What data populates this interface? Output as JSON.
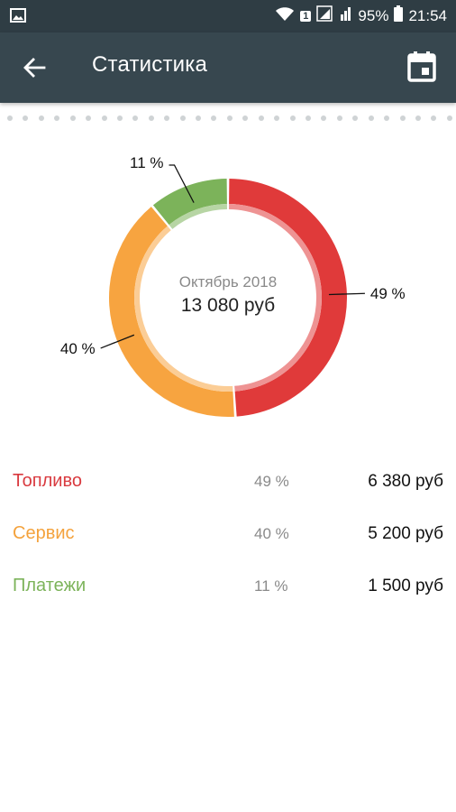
{
  "status_bar": {
    "battery": "95%",
    "time": "21:54",
    "sim_badge": "1"
  },
  "header": {
    "title": "Статистика",
    "back_icon": "arrow-left-icon",
    "calendar_icon": "calendar-icon"
  },
  "summary": {
    "period": "Октябрь 2018",
    "total": "13 080 руб"
  },
  "colors": {
    "fuel": "#e03a3a",
    "service": "#f7a440",
    "payments": "#7cb35a",
    "appbar": "#37474f",
    "statusbar": "#2f3d44"
  },
  "chart_data": {
    "type": "pie",
    "title": "",
    "categories": [
      "Топливо",
      "Сервис",
      "Платежи"
    ],
    "values": [
      49,
      40,
      11
    ],
    "labels": [
      "49 %",
      "40 %",
      "11 %"
    ],
    "colors": [
      "#e03a3a",
      "#f7a440",
      "#7cb35a"
    ]
  },
  "legend": [
    {
      "name": "Топливо",
      "percent": "49 %",
      "amount": "6 380 руб",
      "color": "#d93a3f"
    },
    {
      "name": "Сервис",
      "percent": "40 %",
      "amount": "5 200 руб",
      "color": "#f4a23c"
    },
    {
      "name": "Платежи",
      "percent": "11 %",
      "amount": "1 500 руб",
      "color": "#7cb35a"
    }
  ]
}
